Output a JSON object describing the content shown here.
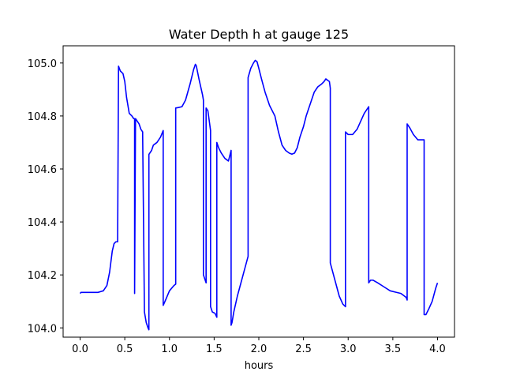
{
  "chart_data": {
    "type": "line",
    "title": "Water Depth h at gauge 125",
    "xlabel": "hours",
    "ylabel": "",
    "xlim": [
      -0.19,
      4.19
    ],
    "ylim": [
      103.965,
      105.065
    ],
    "xticks": [
      0.0,
      0.5,
      1.0,
      1.5,
      2.0,
      2.5,
      3.0,
      3.5,
      4.0
    ],
    "xtick_labels": [
      "0.0",
      "0.5",
      "1.0",
      "1.5",
      "2.0",
      "2.5",
      "3.0",
      "3.5",
      "4.0"
    ],
    "yticks": [
      104.0,
      104.2,
      104.4,
      104.6,
      104.8,
      105.0
    ],
    "ytick_labels": [
      "104.0",
      "104.2",
      "104.4",
      "104.6",
      "104.8",
      "105.0"
    ],
    "grid": false,
    "series": [
      {
        "color": "#0000ff",
        "x": [
          0.0,
          0.01,
          0.1,
          0.2,
          0.26,
          0.3,
          0.33,
          0.36,
          0.38,
          0.4,
          0.42,
          0.43,
          0.43,
          0.45,
          0.48,
          0.5,
          0.52,
          0.55,
          0.58,
          0.6,
          0.61,
          0.61,
          0.62,
          0.64,
          0.66,
          0.68,
          0.7,
          0.7,
          0.72,
          0.74,
          0.76,
          0.77,
          0.77,
          0.8,
          0.82,
          0.86,
          0.9,
          0.93,
          0.93,
          0.95,
          1.0,
          1.05,
          1.07,
          1.07,
          1.1,
          1.14,
          1.18,
          1.23,
          1.27,
          1.29,
          1.3,
          1.33,
          1.37,
          1.38,
          1.38,
          1.41,
          1.41,
          1.43,
          1.45,
          1.46,
          1.46,
          1.48,
          1.51,
          1.53,
          1.53,
          1.55,
          1.58,
          1.62,
          1.66,
          1.69,
          1.69,
          1.7,
          1.72,
          1.76,
          1.8,
          1.84,
          1.88,
          1.88,
          1.91,
          1.94,
          1.96,
          1.98,
          2.0,
          2.03,
          2.07,
          2.12,
          2.18,
          2.22,
          2.26,
          2.3,
          2.34,
          2.37,
          2.4,
          2.43,
          2.46,
          2.5,
          2.53,
          2.58,
          2.62,
          2.66,
          2.7,
          2.73,
          2.75,
          2.77,
          2.79,
          2.8,
          2.8,
          2.82,
          2.86,
          2.9,
          2.94,
          2.97,
          2.97,
          3.0,
          3.05,
          3.1,
          3.14,
          3.18,
          3.22,
          3.23,
          3.23,
          3.25,
          3.28,
          3.33,
          3.4,
          3.47,
          3.53,
          3.59,
          3.63,
          3.65,
          3.66,
          3.66,
          3.69,
          3.73,
          3.78,
          3.83,
          3.85,
          3.85,
          3.87,
          3.9,
          3.94,
          3.98,
          4.0
        ],
        "y": [
          104.13,
          104.134,
          104.134,
          104.134,
          104.14,
          104.16,
          104.21,
          104.29,
          104.318,
          104.325,
          104.325,
          104.988,
          104.988,
          104.97,
          104.96,
          104.93,
          104.87,
          104.81,
          104.8,
          104.79,
          104.79,
          104.13,
          104.79,
          104.78,
          104.77,
          104.75,
          104.74,
          104.73,
          104.06,
          104.02,
          104.0,
          103.993,
          104.655,
          104.67,
          104.69,
          104.7,
          104.72,
          104.745,
          104.085,
          104.1,
          104.14,
          104.16,
          104.165,
          104.83,
          104.832,
          104.835,
          104.86,
          104.92,
          104.975,
          104.995,
          104.99,
          104.94,
          104.88,
          104.86,
          104.2,
          104.17,
          104.83,
          104.82,
          104.77,
          104.745,
          104.08,
          104.06,
          104.055,
          104.04,
          104.7,
          104.68,
          104.66,
          104.64,
          104.63,
          104.67,
          104.01,
          104.02,
          104.06,
          104.12,
          104.17,
          104.22,
          104.27,
          104.945,
          104.98,
          105.0,
          105.01,
          105.005,
          104.98,
          104.94,
          104.89,
          104.84,
          104.8,
          104.74,
          104.69,
          104.67,
          104.66,
          104.656,
          104.66,
          104.68,
          104.72,
          104.76,
          104.8,
          104.85,
          104.89,
          104.91,
          104.92,
          104.93,
          104.94,
          104.935,
          104.93,
          104.905,
          104.245,
          104.22,
          104.17,
          104.12,
          104.09,
          104.08,
          104.74,
          104.73,
          104.73,
          104.75,
          104.78,
          104.81,
          104.83,
          104.835,
          104.17,
          104.18,
          104.18,
          104.17,
          104.155,
          104.14,
          104.135,
          104.13,
          104.12,
          104.115,
          104.105,
          104.77,
          104.755,
          104.73,
          104.71,
          104.71,
          104.71,
          104.05,
          104.05,
          104.07,
          104.1,
          104.15,
          104.17
        ]
      }
    ]
  }
}
